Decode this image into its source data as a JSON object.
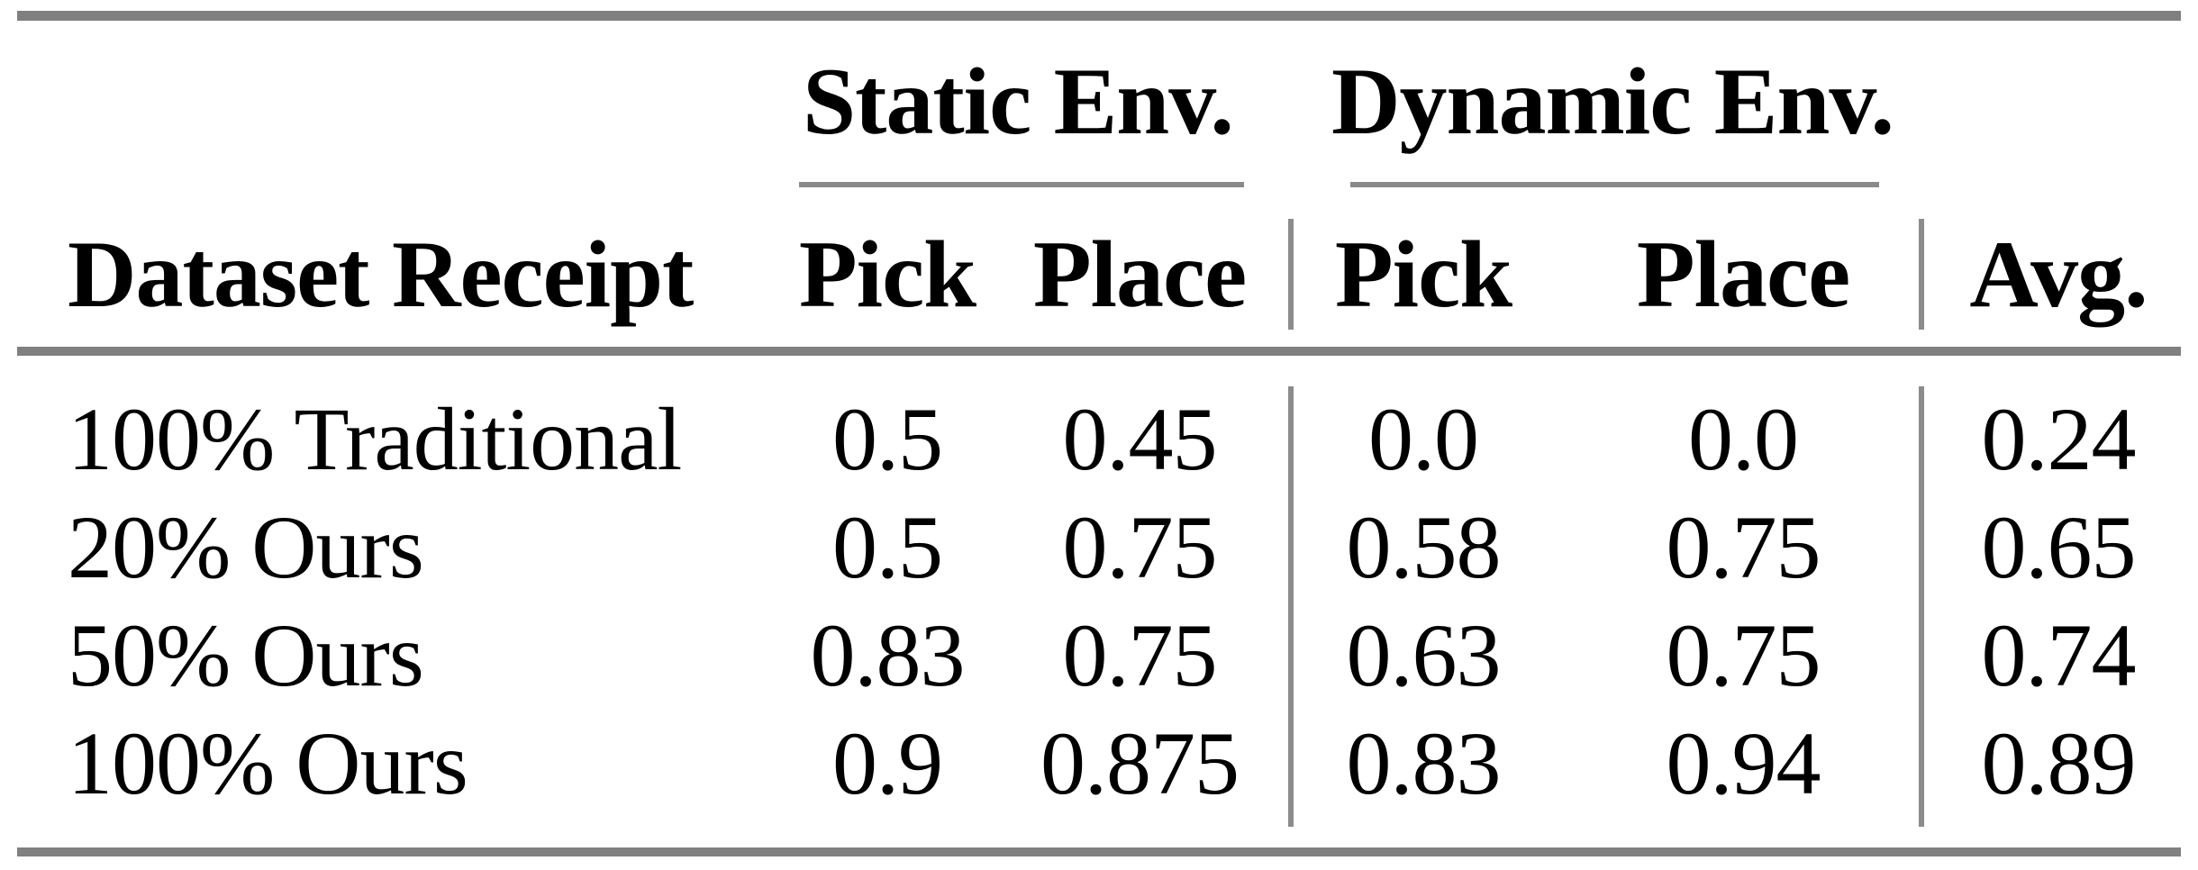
{
  "table": {
    "group_headers": {
      "static": "Static Env.",
      "dynamic": "Dynamic Env."
    },
    "column_headers": {
      "row_label": "Dataset Receipt",
      "static_pick": "Pick",
      "static_place": "Place",
      "dynamic_pick": "Pick",
      "dynamic_place": "Place",
      "avg": "Avg."
    },
    "rows": [
      {
        "label": "100% Traditional",
        "static_pick": "0.5",
        "static_place": "0.45",
        "dynamic_pick": "0.0",
        "dynamic_place": "0.0",
        "avg": "0.24"
      },
      {
        "label": "20% Ours",
        "static_pick": "0.5",
        "static_place": "0.75",
        "dynamic_pick": "0.58",
        "dynamic_place": "0.75",
        "avg": "0.65"
      },
      {
        "label": "50% Ours",
        "static_pick": "0.83",
        "static_place": "0.75",
        "dynamic_pick": "0.63",
        "dynamic_place": "0.75",
        "avg": "0.74"
      },
      {
        "label": "100% Ours",
        "static_pick": "0.9",
        "static_place": "0.875",
        "dynamic_pick": "0.83",
        "dynamic_place": "0.94",
        "avg": "0.89"
      }
    ],
    "colors": {
      "rule_gray": "#808080",
      "separator_gray": "#8c8c8c",
      "text": "#000000",
      "background": "#ffffff"
    }
  }
}
